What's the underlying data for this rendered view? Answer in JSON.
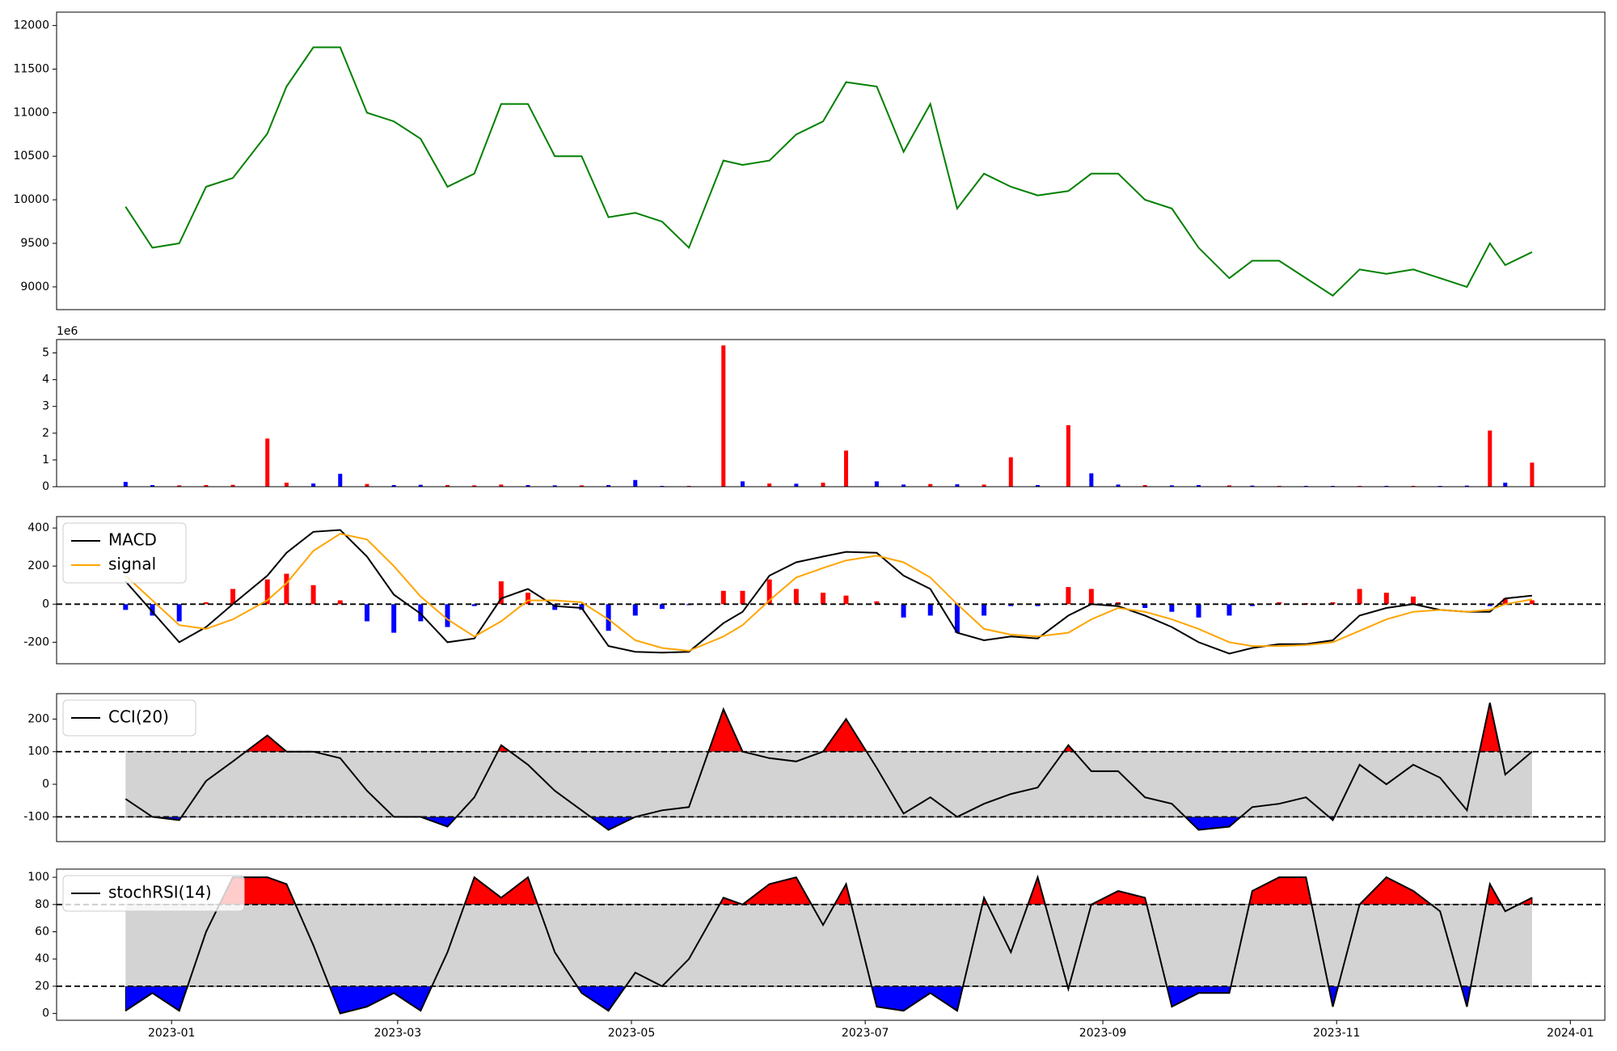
{
  "chart_data": [
    {
      "type": "line",
      "x": [
        "2022-12-20",
        "2022-12-27",
        "2023-01-03",
        "2023-01-10",
        "2023-01-17",
        "2023-01-26",
        "2023-01-31",
        "2023-02-07",
        "2023-02-14",
        "2023-02-21",
        "2023-02-28",
        "2023-03-07",
        "2023-03-14",
        "2023-03-21",
        "2023-03-28",
        "2023-04-04",
        "2023-04-11",
        "2023-04-18",
        "2023-04-25",
        "2023-05-02",
        "2023-05-09",
        "2023-05-16",
        "2023-05-25",
        "2023-05-30",
        "2023-06-06",
        "2023-06-13",
        "2023-06-20",
        "2023-06-26",
        "2023-07-04",
        "2023-07-11",
        "2023-07-18",
        "2023-07-25",
        "2023-08-01",
        "2023-08-08",
        "2023-08-15",
        "2023-08-23",
        "2023-08-29",
        "2023-09-05",
        "2023-09-12",
        "2023-09-19",
        "2023-09-26",
        "2023-10-04",
        "2023-10-10",
        "2023-10-17",
        "2023-10-24",
        "2023-10-31",
        "2023-11-07",
        "2023-11-14",
        "2023-11-21",
        "2023-11-28",
        "2023-12-05",
        "2023-12-11",
        "2023-12-15",
        "2023-12-22"
      ],
      "series": [
        {
          "color": "#008000",
          "values": [
            9920,
            9450,
            9500,
            10150,
            10250,
            10760,
            11300,
            11750,
            11750,
            11000,
            10900,
            10700,
            10150,
            10300,
            11100,
            11100,
            10500,
            10500,
            9800,
            9850,
            9750,
            9450,
            10450,
            10400,
            10450,
            10750,
            10900,
            11350,
            11300,
            10550,
            11100,
            9900,
            10300,
            10150,
            10050,
            10100,
            10300,
            10300,
            10000,
            9900,
            9450,
            9100,
            9300,
            9300,
            9100,
            8900,
            9200,
            9150,
            9200,
            9100,
            9000,
            9500,
            9250,
            9400
          ]
        }
      ],
      "xlim": [
        "2022-12-02",
        "2024-01-10"
      ],
      "ylim": [
        8739,
        12154
      ],
      "yticks": [
        9000,
        9500,
        10000,
        10500,
        11000,
        11500,
        12000
      ]
    },
    {
      "type": "bar",
      "x": [
        "2022-12-20",
        "2022-12-27",
        "2023-01-03",
        "2023-01-10",
        "2023-01-17",
        "2023-01-26",
        "2023-01-31",
        "2023-02-07",
        "2023-02-14",
        "2023-02-21",
        "2023-02-28",
        "2023-03-07",
        "2023-03-14",
        "2023-03-21",
        "2023-03-28",
        "2023-04-04",
        "2023-04-11",
        "2023-04-18",
        "2023-04-25",
        "2023-05-02",
        "2023-05-09",
        "2023-05-16",
        "2023-05-25",
        "2023-05-30",
        "2023-06-06",
        "2023-06-13",
        "2023-06-20",
        "2023-06-26",
        "2023-07-04",
        "2023-07-11",
        "2023-07-18",
        "2023-07-25",
        "2023-08-01",
        "2023-08-08",
        "2023-08-15",
        "2023-08-23",
        "2023-08-29",
        "2023-09-05",
        "2023-09-12",
        "2023-09-19",
        "2023-09-26",
        "2023-10-04",
        "2023-10-10",
        "2023-10-17",
        "2023-10-24",
        "2023-10-31",
        "2023-11-07",
        "2023-11-14",
        "2023-11-21",
        "2023-11-28",
        "2023-12-05",
        "2023-12-11",
        "2023-12-15",
        "2023-12-22"
      ],
      "values": [
        180000,
        60000,
        50000,
        60000,
        70000,
        1800000,
        150000,
        120000,
        480000,
        100000,
        60000,
        70000,
        60000,
        50000,
        80000,
        60000,
        50000,
        50000,
        60000,
        250000,
        30000,
        30000,
        5280000,
        200000,
        120000,
        110000,
        150000,
        1350000,
        200000,
        80000,
        100000,
        90000,
        80000,
        1100000,
        60000,
        2300000,
        500000,
        80000,
        60000,
        50000,
        60000,
        50000,
        40000,
        30000,
        30000,
        30000,
        30000,
        30000,
        30000,
        30000,
        40000,
        2100000,
        150000,
        900000
      ],
      "colors": [
        "#0000ff",
        "#0000ff",
        "#ff0000",
        "#ff0000",
        "#ff0000",
        "#ff0000",
        "#ff0000",
        "#0000ff",
        "#0000ff",
        "#ff0000",
        "#0000ff",
        "#0000ff",
        "#ff0000",
        "#ff0000",
        "#ff0000",
        "#0000ff",
        "#0000ff",
        "#ff0000",
        "#0000ff",
        "#0000ff",
        "#0000ff",
        "#ff0000",
        "#ff0000",
        "#0000ff",
        "#ff0000",
        "#0000ff",
        "#ff0000",
        "#ff0000",
        "#0000ff",
        "#0000ff",
        "#ff0000",
        "#0000ff",
        "#ff0000",
        "#ff0000",
        "#0000ff",
        "#ff0000",
        "#0000ff",
        "#0000ff",
        "#ff0000",
        "#0000ff",
        "#0000ff",
        "#ff0000",
        "#0000ff",
        "#ff0000",
        "#0000ff",
        "#0000ff",
        "#ff0000",
        "#0000ff",
        "#ff0000",
        "#0000ff",
        "#0000ff",
        "#ff0000",
        "#0000ff",
        "#ff0000"
      ],
      "offset_label": "1e6",
      "xlim": [
        "2022-12-02",
        "2024-01-10"
      ],
      "ylim": [
        0,
        5500000
      ],
      "yticks": [
        {
          "value": 0,
          "label": "0"
        },
        {
          "value": 1000000,
          "label": "1"
        },
        {
          "value": 2000000,
          "label": "2"
        },
        {
          "value": 3000000,
          "label": "3"
        },
        {
          "value": 4000000,
          "label": "4"
        },
        {
          "value": 5000000,
          "label": "5"
        }
      ]
    },
    {
      "type": "macd",
      "x": [
        "2022-12-20",
        "2022-12-27",
        "2023-01-03",
        "2023-01-10",
        "2023-01-17",
        "2023-01-26",
        "2023-01-31",
        "2023-02-07",
        "2023-02-14",
        "2023-02-21",
        "2023-02-28",
        "2023-03-07",
        "2023-03-14",
        "2023-03-21",
        "2023-03-28",
        "2023-04-04",
        "2023-04-11",
        "2023-04-18",
        "2023-04-25",
        "2023-05-02",
        "2023-05-09",
        "2023-05-16",
        "2023-05-25",
        "2023-05-30",
        "2023-06-06",
        "2023-06-13",
        "2023-06-20",
        "2023-06-26",
        "2023-07-04",
        "2023-07-11",
        "2023-07-18",
        "2023-07-25",
        "2023-08-01",
        "2023-08-08",
        "2023-08-15",
        "2023-08-23",
        "2023-08-29",
        "2023-09-05",
        "2023-09-12",
        "2023-09-19",
        "2023-09-26",
        "2023-10-04",
        "2023-10-10",
        "2023-10-17",
        "2023-10-24",
        "2023-10-31",
        "2023-11-07",
        "2023-11-14",
        "2023-11-21",
        "2023-11-28",
        "2023-12-05",
        "2023-12-11",
        "2023-12-15",
        "2023-12-22"
      ],
      "series": [
        {
          "name": "MACD",
          "color": "#000000",
          "values": [
            120,
            -40,
            -200,
            -120,
            0,
            150,
            270,
            380,
            390,
            250,
            50,
            -50,
            -200,
            -180,
            30,
            80,
            -10,
            -20,
            -220,
            -250,
            -255,
            -250,
            -100,
            -40,
            150,
            220,
            250,
            275,
            270,
            150,
            80,
            -150,
            -190,
            -170,
            -180,
            -60,
            0,
            -10,
            -60,
            -120,
            -200,
            -260,
            -230,
            -210,
            -210,
            -190,
            -60,
            -20,
            0,
            -30,
            -40,
            -40,
            30,
            45
          ]
        },
        {
          "name": "signal",
          "color": "#ffa500",
          "values": [
            150,
            20,
            -110,
            -130,
            -80,
            20,
            110,
            280,
            370,
            340,
            200,
            40,
            -80,
            -170,
            -90,
            20,
            20,
            10,
            -80,
            -190,
            -230,
            -245,
            -170,
            -110,
            20,
            140,
            190,
            230,
            255,
            220,
            140,
            0,
            -130,
            -160,
            -170,
            -150,
            -80,
            -20,
            -40,
            -80,
            -130,
            -200,
            -220,
            -220,
            -215,
            -200,
            -140,
            -80,
            -40,
            -30,
            -40,
            -30,
            0,
            25
          ]
        }
      ],
      "histogram": {
        "pos_color": "#ff0000",
        "neg_color": "#0000ff",
        "values": [
          -30,
          -60,
          -90,
          10,
          80,
          130,
          160,
          100,
          20,
          -90,
          -150,
          -90,
          -120,
          -10,
          120,
          60,
          -30,
          -30,
          -140,
          -60,
          -25,
          -5,
          70,
          70,
          130,
          80,
          60,
          45,
          15,
          -70,
          -60,
          -150,
          -60,
          -10,
          -10,
          90,
          80,
          10,
          -20,
          -40,
          -70,
          -60,
          -10,
          10,
          5,
          10,
          80,
          60,
          40,
          0,
          0,
          -10,
          30,
          20
        ]
      },
      "hlines": [
        0
      ],
      "legend": "upper left",
      "xlim": [
        "2022-12-02",
        "2024-01-10"
      ],
      "ylim": [
        -313,
        460
      ],
      "yticks": [
        -200,
        0,
        200,
        400
      ]
    },
    {
      "type": "band",
      "x": [
        "2022-12-20",
        "2022-12-27",
        "2023-01-03",
        "2023-01-10",
        "2023-01-17",
        "2023-01-26",
        "2023-01-31",
        "2023-02-07",
        "2023-02-14",
        "2023-02-21",
        "2023-02-28",
        "2023-03-07",
        "2023-03-14",
        "2023-03-21",
        "2023-03-28",
        "2023-04-04",
        "2023-04-11",
        "2023-04-18",
        "2023-04-25",
        "2023-05-02",
        "2023-05-09",
        "2023-05-16",
        "2023-05-25",
        "2023-05-30",
        "2023-06-06",
        "2023-06-13",
        "2023-06-20",
        "2023-06-26",
        "2023-07-04",
        "2023-07-11",
        "2023-07-18",
        "2023-07-25",
        "2023-08-01",
        "2023-08-08",
        "2023-08-15",
        "2023-08-23",
        "2023-08-29",
        "2023-09-05",
        "2023-09-12",
        "2023-09-19",
        "2023-09-26",
        "2023-10-04",
        "2023-10-10",
        "2023-10-17",
        "2023-10-24",
        "2023-10-31",
        "2023-11-07",
        "2023-11-14",
        "2023-11-21",
        "2023-11-28",
        "2023-12-05",
        "2023-12-11",
        "2023-12-15",
        "2023-12-22"
      ],
      "series": [
        {
          "name": "CCI(20)",
          "color": "#000000",
          "values": [
            -45,
            -100,
            -110,
            10,
            70,
            150,
            100,
            100,
            80,
            -20,
            -100,
            -100,
            -130,
            -40,
            120,
            60,
            -20,
            -80,
            -140,
            -100,
            -80,
            -70,
            230,
            100,
            80,
            70,
            100,
            200,
            50,
            -90,
            -40,
            -100,
            -60,
            -30,
            -10,
            120,
            40,
            40,
            -40,
            -60,
            -140,
            -130,
            -70,
            -60,
            -40,
            -110,
            60,
            0,
            60,
            20,
            -80,
            250,
            30,
            100
          ]
        }
      ],
      "bands": [
        -100,
        100
      ],
      "band_color": "#d3d3d3",
      "upper_color": "#ff0000",
      "lower_color": "#0000ff",
      "legend": "upper left",
      "xlim": [
        "2022-12-02",
        "2024-01-10"
      ],
      "ylim": [
        -176,
        278
      ],
      "yticks": [
        -100,
        0,
        100,
        200
      ]
    },
    {
      "type": "band",
      "x": [
        "2022-12-20",
        "2022-12-27",
        "2023-01-03",
        "2023-01-10",
        "2023-01-17",
        "2023-01-26",
        "2023-01-31",
        "2023-02-07",
        "2023-02-14",
        "2023-02-21",
        "2023-02-28",
        "2023-03-07",
        "2023-03-14",
        "2023-03-21",
        "2023-03-28",
        "2023-04-04",
        "2023-04-11",
        "2023-04-18",
        "2023-04-25",
        "2023-05-02",
        "2023-05-09",
        "2023-05-16",
        "2023-05-25",
        "2023-05-30",
        "2023-06-06",
        "2023-06-13",
        "2023-06-20",
        "2023-06-26",
        "2023-07-04",
        "2023-07-11",
        "2023-07-18",
        "2023-07-25",
        "2023-08-01",
        "2023-08-08",
        "2023-08-15",
        "2023-08-23",
        "2023-08-29",
        "2023-09-05",
        "2023-09-12",
        "2023-09-19",
        "2023-09-26",
        "2023-10-04",
        "2023-10-10",
        "2023-10-17",
        "2023-10-24",
        "2023-10-31",
        "2023-11-07",
        "2023-11-14",
        "2023-11-21",
        "2023-11-28",
        "2023-12-05",
        "2023-12-11",
        "2023-12-15",
        "2023-12-22"
      ],
      "series": [
        {
          "name": "stochRSI(14)",
          "color": "#000000",
          "values": [
            2,
            15,
            2,
            60,
            100,
            100,
            95,
            50,
            0,
            5,
            15,
            2,
            45,
            100,
            85,
            100,
            45,
            15,
            2,
            30,
            20,
            40,
            85,
            80,
            95,
            100,
            65,
            95,
            5,
            2,
            15,
            2,
            85,
            45,
            100,
            18,
            80,
            90,
            85,
            5,
            15,
            15,
            90,
            100,
            100,
            5,
            80,
            100,
            90,
            75,
            5,
            95,
            75,
            85
          ]
        }
      ],
      "bands": [
        20,
        80
      ],
      "band_color": "#d3d3d3",
      "upper_color": "#ff0000",
      "lower_color": "#0000ff",
      "legend": "upper left",
      "xlim": [
        "2022-12-02",
        "2024-01-10"
      ],
      "ylim": [
        -5,
        106
      ],
      "yticks": [
        0,
        20,
        40,
        60,
        80,
        100
      ],
      "xticks": [
        {
          "value": "2023-01-01",
          "label": "2023-01"
        },
        {
          "value": "2023-03-01",
          "label": "2023-03"
        },
        {
          "value": "2023-05-01",
          "label": "2023-05"
        },
        {
          "value": "2023-07-01",
          "label": "2023-07"
        },
        {
          "value": "2023-09-01",
          "label": "2023-09"
        },
        {
          "value": "2023-11-01",
          "label": "2023-11"
        },
        {
          "value": "2024-01-01",
          "label": "2024-01"
        }
      ]
    }
  ]
}
